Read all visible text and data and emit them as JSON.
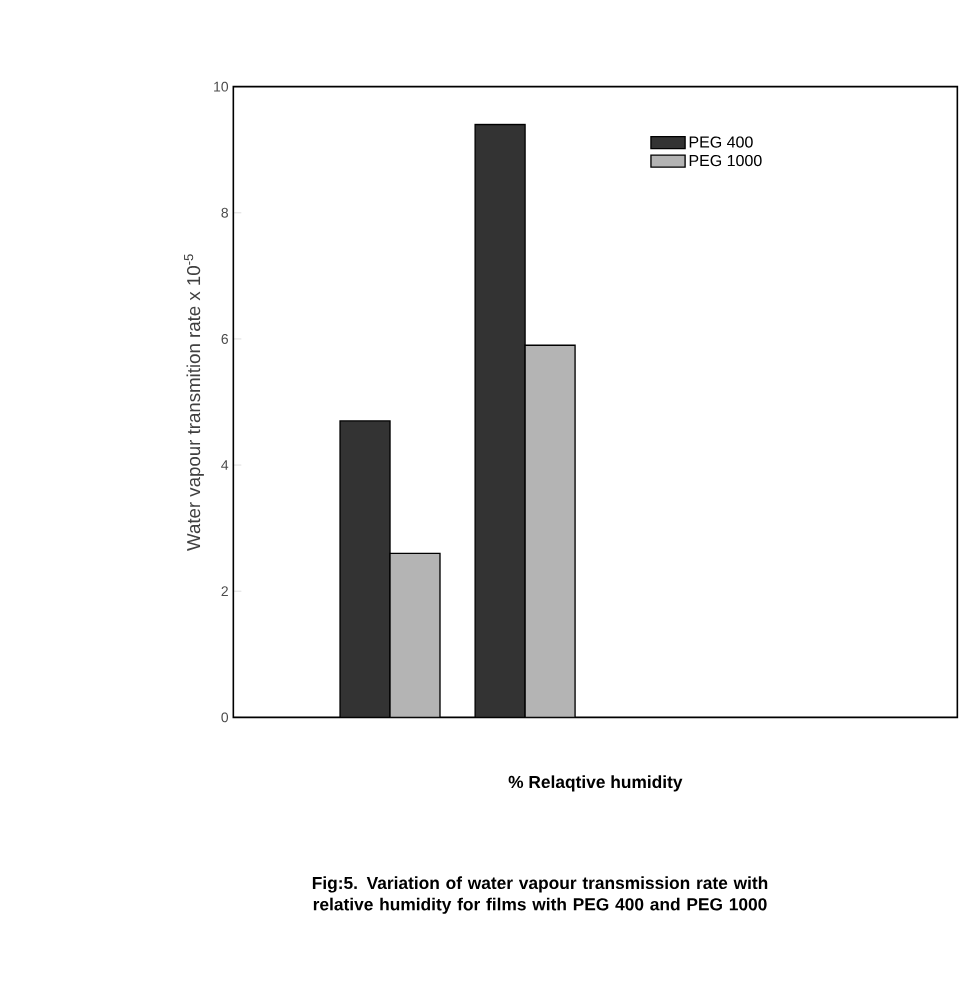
{
  "chart_data": {
    "type": "bar",
    "title": "Fig:5. Variation of water vapour transmission rate with relative humidity for films with PEG 400 and PEG 1000",
    "xlabel": "% Relaqtive humidity",
    "ylabel": "Water vapour transmition rate x 10$^{-5}$",
    "categories": [
      null,
      null
    ],
    "series": [
      {
        "name": "PEG 400",
        "color": "#333333",
        "values": [
          4.7,
          9.4
        ]
      },
      {
        "name": "PEG 1000",
        "color": "#b4b4b4",
        "values": [
          2.6,
          5.9
        ]
      }
    ],
    "ylim": [
      0,
      10
    ],
    "yticks": [
      0,
      2,
      4,
      6,
      8,
      10
    ],
    "legend": "top right"
  }
}
